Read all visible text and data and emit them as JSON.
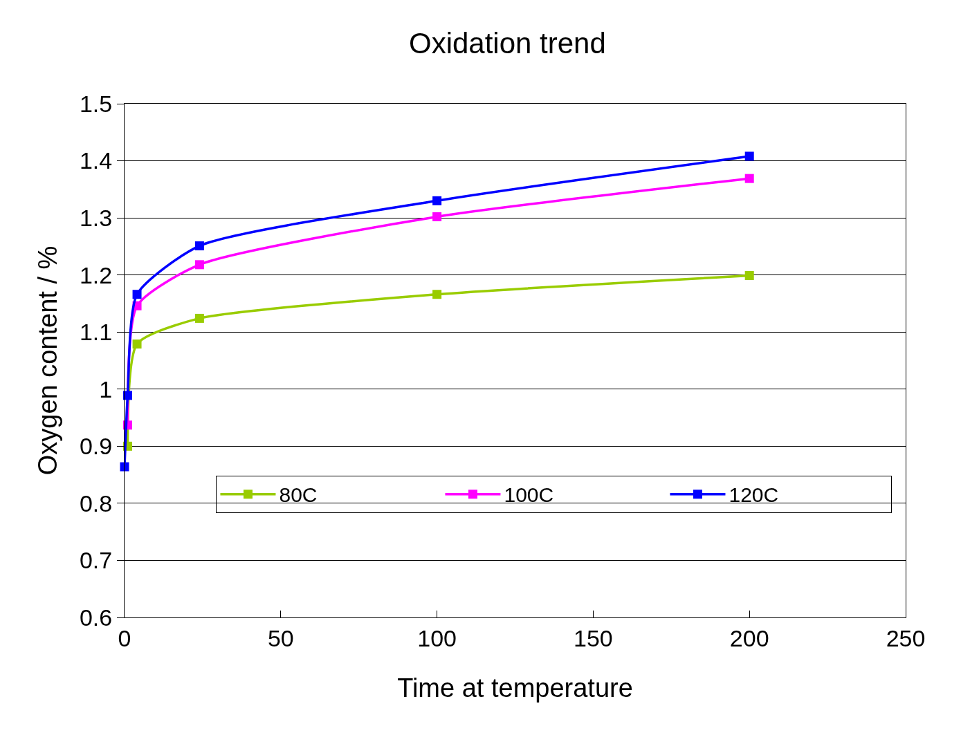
{
  "chart_data": {
    "type": "line",
    "title": "Oxidation trend",
    "xlabel": "Time at temperature",
    "ylabel": "Oxygen content / %",
    "x": [
      0,
      1,
      4,
      24,
      100,
      200
    ],
    "series": [
      {
        "name": "80C",
        "color": "#99cc00",
        "values": [
          null,
          0.9,
          1.079,
          1.124,
          1.166,
          1.199
        ]
      },
      {
        "name": "100C",
        "color": "#ff00ff",
        "values": [
          null,
          0.937,
          1.146,
          1.218,
          1.302,
          1.369
        ]
      },
      {
        "name": "120C",
        "color": "#0000ff",
        "values": [
          0.864,
          0.989,
          1.166,
          1.251,
          1.33,
          1.408
        ]
      }
    ],
    "xlim": [
      0,
      250
    ],
    "xticks": [
      0,
      50,
      100,
      150,
      200,
      250
    ],
    "ylim": [
      0.6,
      1.5
    ],
    "yticks": [
      0.6,
      0.7,
      0.8,
      0.9,
      1,
      1.1,
      1.2,
      1.3,
      1.4,
      1.5
    ],
    "grid": "y",
    "legend": "bottom",
    "marker": "square",
    "line_style": "solid"
  }
}
